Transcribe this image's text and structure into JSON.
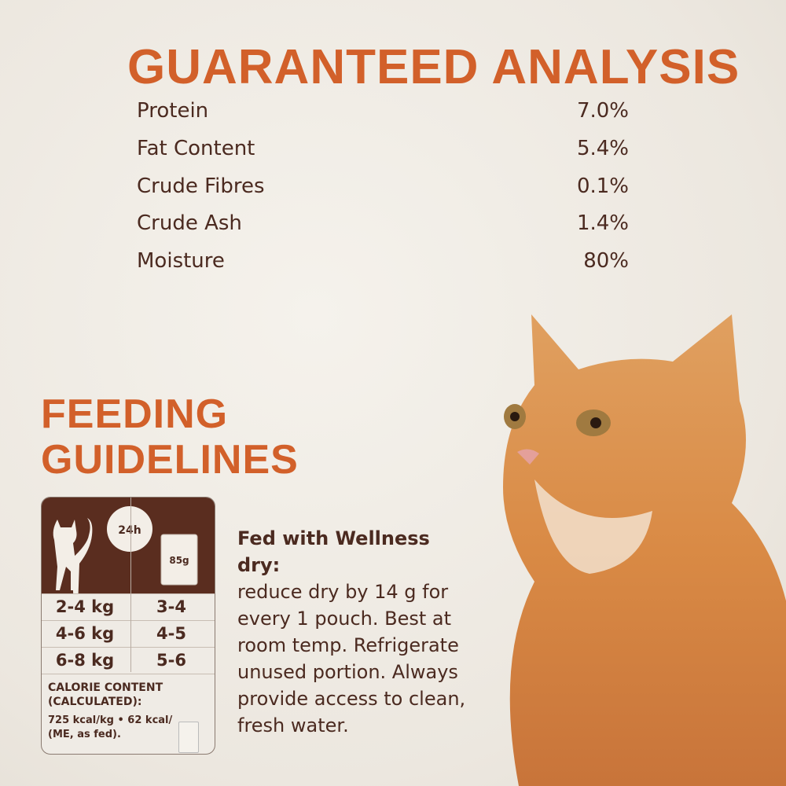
{
  "guaranteed_analysis": {
    "title": "GUARANTEED ANALYSIS",
    "rows": [
      {
        "label": "Protein",
        "value": "7.0%"
      },
      {
        "label": "Fat Content",
        "value": "5.4%"
      },
      {
        "label": "Crude Fibres",
        "value": "0.1%"
      },
      {
        "label": "Crude Ash",
        "value": "1.4%"
      },
      {
        "label": "Moisture",
        "value": "80%"
      }
    ]
  },
  "feeding": {
    "title_line1": "FEEDING",
    "title_line2": "GUIDELINES",
    "clock_label": "24h",
    "pouch_label": "85g",
    "rows": [
      {
        "weight": "2-4 kg",
        "pouches": "3-4"
      },
      {
        "weight": "4-6 kg",
        "pouches": "4-5"
      },
      {
        "weight": "6-8 kg",
        "pouches": "5-6"
      }
    ],
    "calorie_heading_1": "CALORIE CONTENT",
    "calorie_heading_2": "(CALCULATED):",
    "calorie_line_1": "725 kcal/kg • 62 kcal/",
    "calorie_line_2": "(ME, as fed).",
    "note_heading": "Fed with Wellness dry:",
    "note_body": "reduce dry by 14 g for every 1 pouch. Best at room temp. Refrigerate unused portion. Always provide access to clean, fresh water."
  },
  "colors": {
    "accent": "#d2602a",
    "text": "#4b2a20",
    "table_header": "#5a2d1f"
  }
}
